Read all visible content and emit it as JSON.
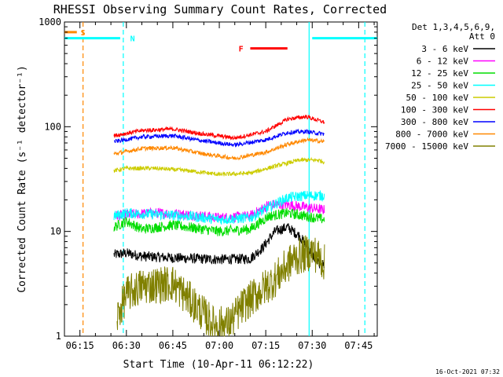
{
  "chart_data": {
    "type": "line",
    "title": "RHESSI Observing Summary Count Rates, Corrected",
    "xlabel": "Start Time (10-Apr-11 06:12:22)",
    "ylabel": "Corrected Count Rate (s⁻¹ detector⁻¹)",
    "y_scale": "log",
    "ylim": [
      1,
      1000
    ],
    "xlim": [
      "06:10",
      "07:51"
    ],
    "x_ticks": [
      "06:15",
      "06:30",
      "06:45",
      "07:00",
      "07:15",
      "07:30",
      "07:45"
    ],
    "y_ticks": [
      "1",
      "10",
      "100",
      "1000"
    ],
    "timestamp": "16-Oct-2021 07:32",
    "legend": {
      "position": "right",
      "header_line1": "Det 1,3,4,5,6,9,",
      "header_line2": "Att 0"
    },
    "series": [
      {
        "name": "3 - 6 keV",
        "color": "#000000",
        "x": [
          "06:26",
          "06:30",
          "06:35",
          "06:45",
          "07:00",
          "07:10",
          "07:14",
          "07:18",
          "07:22",
          "07:26",
          "07:30",
          "07:32",
          "07:34"
        ],
        "y": [
          6,
          6.2,
          5.8,
          5.6,
          5.4,
          5.5,
          7,
          10,
          11,
          9,
          6,
          5,
          4.8
        ]
      },
      {
        "name": "6 - 12 keV",
        "color": "#ff00ff",
        "x": [
          "06:26",
          "06:30",
          "06:40",
          "06:50",
          "07:00",
          "07:10",
          "07:16",
          "07:22",
          "07:28",
          "07:34"
        ],
        "y": [
          14,
          14.5,
          15,
          14.5,
          13.5,
          14,
          18,
          18,
          17,
          16
        ]
      },
      {
        "name": "12 - 25 keV",
        "color": "#00dd00",
        "x": [
          "06:26",
          "06:30",
          "06:35",
          "06:45",
          "07:00",
          "07:10",
          "07:16",
          "07:22",
          "07:28",
          "07:34"
        ],
        "y": [
          11,
          12.5,
          10.5,
          11.5,
          10,
          10.5,
          14,
          15,
          14,
          13
        ]
      },
      {
        "name": "25 - 50 keV",
        "color": "#00ffff",
        "x": [
          "06:26",
          "06:30",
          "06:40",
          "06:50",
          "07:00",
          "07:10",
          "07:16",
          "07:22",
          "07:28",
          "07:34"
        ],
        "y": [
          14,
          15,
          14.5,
          14,
          13,
          13.5,
          17,
          21,
          22,
          22
        ]
      },
      {
        "name": "50 - 100 keV",
        "color": "#cccc00",
        "x": [
          "06:26",
          "06:30",
          "06:40",
          "06:50",
          "07:00",
          "07:10",
          "07:18",
          "07:26",
          "07:32",
          "07:34"
        ],
        "y": [
          38,
          40,
          40,
          38,
          35,
          36,
          42,
          48,
          48,
          46
        ]
      },
      {
        "name": "100 - 300 keV",
        "color": "#ff0000",
        "x": [
          "06:26",
          "06:35",
          "06:45",
          "06:55",
          "07:05",
          "07:15",
          "07:22",
          "07:28",
          "07:34"
        ],
        "y": [
          82,
          92,
          95,
          85,
          78,
          90,
          118,
          125,
          110
        ]
      },
      {
        "name": "300 - 800 keV",
        "color": "#0000ff",
        "x": [
          "06:26",
          "06:35",
          "06:45",
          "06:55",
          "07:05",
          "07:15",
          "07:22",
          "07:28",
          "07:34"
        ],
        "y": [
          72,
          80,
          82,
          73,
          67,
          75,
          88,
          90,
          85
        ]
      },
      {
        "name": "800 - 7000 keV",
        "color": "#ff8800",
        "x": [
          "06:26",
          "06:35",
          "06:45",
          "06:55",
          "07:05",
          "07:15",
          "07:22",
          "07:28",
          "07:34"
        ],
        "y": [
          55,
          62,
          63,
          55,
          50,
          57,
          68,
          75,
          72
        ]
      },
      {
        "name": "7000 - 15000 keV",
        "color": "#808000",
        "x": [
          "06:27",
          "06:30",
          "06:35",
          "06:45",
          "06:52",
          "06:58",
          "07:03",
          "07:08",
          "07:12",
          "07:18",
          "07:24",
          "07:30",
          "07:34"
        ],
        "y": [
          1.5,
          2.5,
          3,
          3.2,
          2,
          1.3,
          1.3,
          2,
          2.5,
          3.5,
          5.5,
          6.5,
          5
        ]
      }
    ],
    "bars": [
      {
        "label": "S",
        "color": "#ff8800",
        "start": "06:10",
        "end": "06:14",
        "y": 800,
        "label_at": "06:16"
      },
      {
        "label": "N",
        "color": "#00ffff",
        "start": "06:10",
        "end": "06:28",
        "y": 700,
        "label_at": "06:32"
      },
      {
        "label": "",
        "color": "#00ffff",
        "start": "07:30",
        "end": "07:51",
        "y": 700,
        "label_at": ""
      },
      {
        "label": "F",
        "color": "#ff0000",
        "start": "07:10",
        "end": "07:22",
        "y": 560,
        "label_at": "07:07"
      }
    ],
    "vlines": [
      {
        "color": "#ff8800",
        "at": "06:16",
        "style": "dashed"
      },
      {
        "color": "#00ffff",
        "at": "06:29",
        "style": "dashed"
      },
      {
        "color": "#00ffff",
        "at": "07:29",
        "style": "solid"
      },
      {
        "color": "#00ffff",
        "at": "07:47",
        "style": "dashed"
      }
    ]
  }
}
